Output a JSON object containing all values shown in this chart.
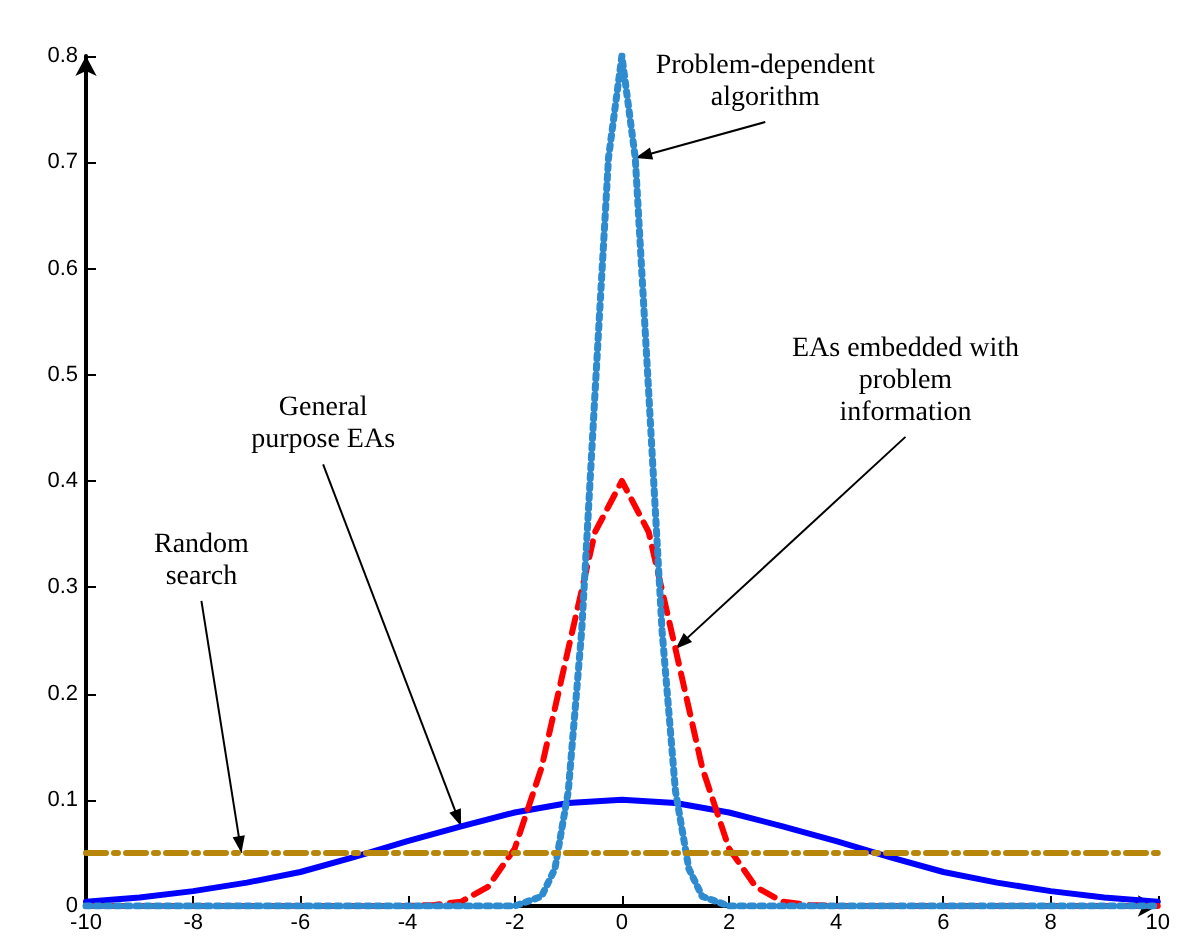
{
  "chart_data": {
    "type": "line",
    "xlim": [
      -10,
      10
    ],
    "xticks": [
      -10,
      -8,
      -6,
      -4,
      -2,
      0,
      2,
      4,
      6,
      8,
      10
    ],
    "ylim": [
      0,
      0.8
    ],
    "yticks": [
      0,
      0.1,
      0.2,
      0.3,
      0.4,
      0.5,
      0.6,
      0.7,
      0.8
    ],
    "grid": false,
    "marker": "none",
    "series": [
      {
        "color": "#0000ff",
        "line_style": "solid",
        "x": [
          -10,
          -9,
          -8,
          -7,
          -6,
          -5,
          -4,
          -3,
          -2,
          -1,
          0,
          1,
          2,
          3,
          4,
          5,
          6,
          7,
          8,
          9,
          10
        ],
        "values": [
          0.004,
          0.008,
          0.014,
          0.022,
          0.032,
          0.046,
          0.061,
          0.075,
          0.088,
          0.097,
          0.1,
          0.097,
          0.088,
          0.075,
          0.061,
          0.046,
          0.032,
          0.022,
          0.014,
          0.008,
          0.004
        ]
      },
      {
        "color": "#ff0000",
        "line_style": "dashed",
        "x": [
          -10,
          -4,
          -3.5,
          -3,
          -2.5,
          -2,
          -1.5,
          -1,
          -0.5,
          0,
          0.5,
          1,
          1.5,
          2,
          2.5,
          3,
          3.5,
          4,
          10
        ],
        "values": [
          0,
          0,
          0.001,
          0.004,
          0.018,
          0.054,
          0.13,
          0.242,
          0.352,
          0.4,
          0.352,
          0.242,
          0.13,
          0.054,
          0.018,
          0.004,
          0.001,
          0,
          0
        ]
      },
      {
        "color": "#2e8bd0",
        "line_style": "dotted",
        "x": [
          -10,
          -2,
          -1.5,
          -1.25,
          -1,
          -0.75,
          -0.5,
          -0.25,
          0,
          0.25,
          0.5,
          0.75,
          1,
          1.25,
          1.5,
          2,
          10
        ],
        "values": [
          0,
          0,
          0.009,
          0.035,
          0.108,
          0.259,
          0.484,
          0.704,
          0.8,
          0.704,
          0.484,
          0.259,
          0.108,
          0.035,
          0.009,
          0,
          0
        ]
      },
      {
        "color": "#b8860b",
        "line_style": "dashdot",
        "x": [
          -10,
          10
        ],
        "values": [
          0.05,
          0.05
        ]
      }
    ],
    "annotations": [
      {
        "text": "Problem-dependent\nalgorithm",
        "x": 0.25,
        "y": 0.704
      },
      {
        "text": "EAs embedded with\nproblem\ninformation",
        "x": 1,
        "y": 0.242
      },
      {
        "text": "General\npurpose EAs",
        "x": -3,
        "y": 0.075
      },
      {
        "text": "Random\nsearch",
        "x": -7.1,
        "y": 0.05
      }
    ]
  }
}
